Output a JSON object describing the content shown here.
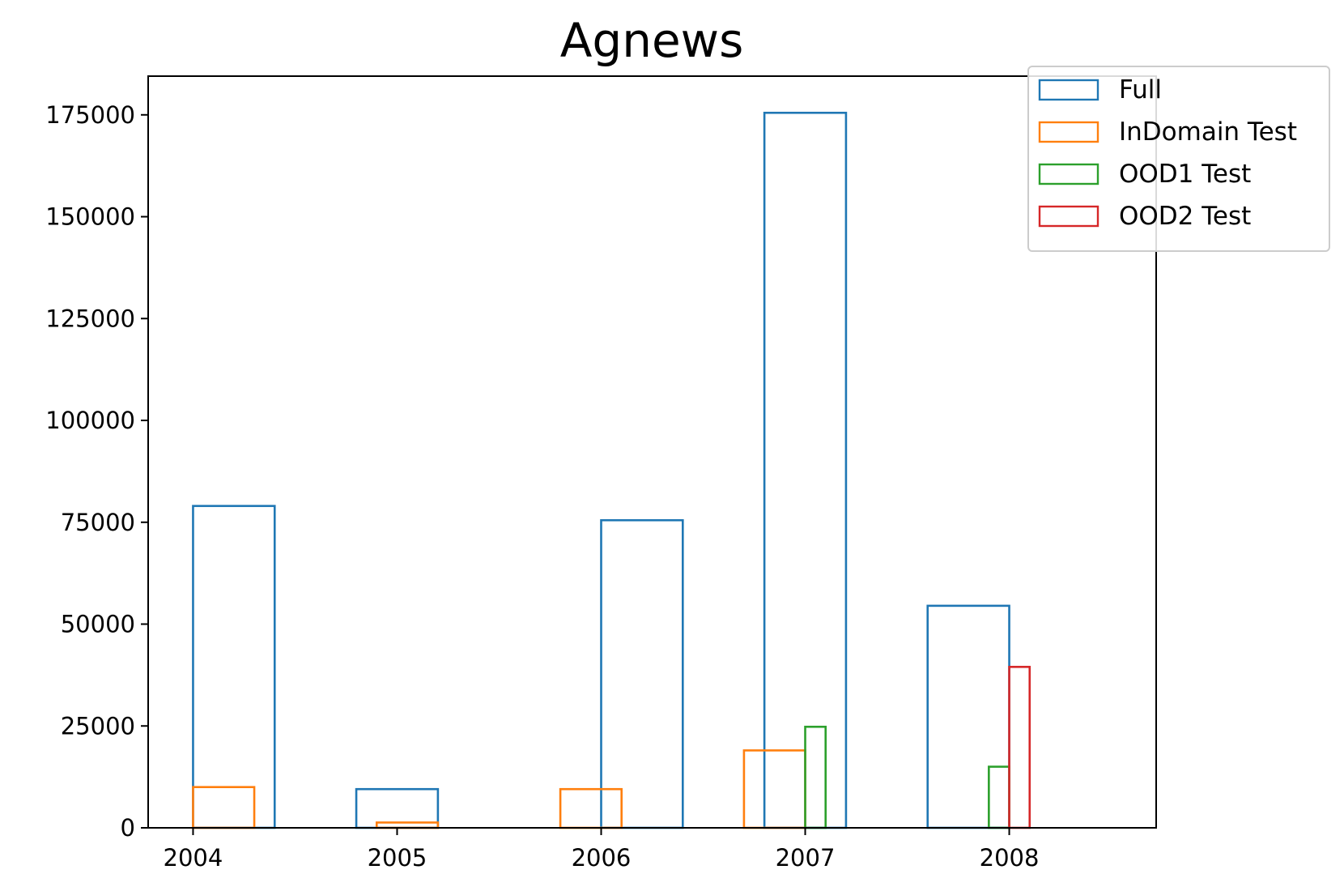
{
  "chart_data": {
    "type": "bar",
    "title": "Agnews",
    "xlabel": "",
    "ylabel": "",
    "x_ticks": [
      "2004",
      "2005",
      "2006",
      "2007",
      "2008"
    ],
    "y_ticks": [
      0,
      25000,
      50000,
      75000,
      100000,
      125000,
      150000,
      175000
    ],
    "y_tick_labels": [
      "0",
      "25000",
      "50000",
      "75000",
      "100000",
      "125000",
      "150000",
      "175000"
    ],
    "xlim": [
      2003.78,
      2008.72
    ],
    "ylim": [
      0,
      184500
    ],
    "grid": false,
    "legend_position": "top-right",
    "series": [
      {
        "name": "Full",
        "color": "#1f77b4",
        "bins": [
          {
            "x0": 2004.0,
            "x1": 2004.4,
            "value": 79000
          },
          {
            "x0": 2004.8,
            "x1": 2005.2,
            "value": 9500
          },
          {
            "x0": 2006.0,
            "x1": 2006.4,
            "value": 75500
          },
          {
            "x0": 2006.8,
            "x1": 2007.2,
            "value": 175500
          },
          {
            "x0": 2007.6,
            "x1": 2008.0,
            "value": 54500
          }
        ]
      },
      {
        "name": "InDomain Test",
        "color": "#ff7f0e",
        "bins": [
          {
            "x0": 2004.0,
            "x1": 2004.3,
            "value": 10000
          },
          {
            "x0": 2004.9,
            "x1": 2005.2,
            "value": 1300
          },
          {
            "x0": 2005.8,
            "x1": 2006.1,
            "value": 9500
          },
          {
            "x0": 2006.7,
            "x1": 2007.0,
            "value": 19000
          }
        ]
      },
      {
        "name": "OOD1 Test",
        "color": "#2ca02c",
        "bins": [
          {
            "x0": 2007.0,
            "x1": 2007.1,
            "value": 24800
          },
          {
            "x0": 2007.9,
            "x1": 2008.0,
            "value": 15000
          }
        ]
      },
      {
        "name": "OOD2 Test",
        "color": "#d62728",
        "bins": [
          {
            "x0": 2008.0,
            "x1": 2008.1,
            "value": 39500
          }
        ]
      }
    ]
  }
}
